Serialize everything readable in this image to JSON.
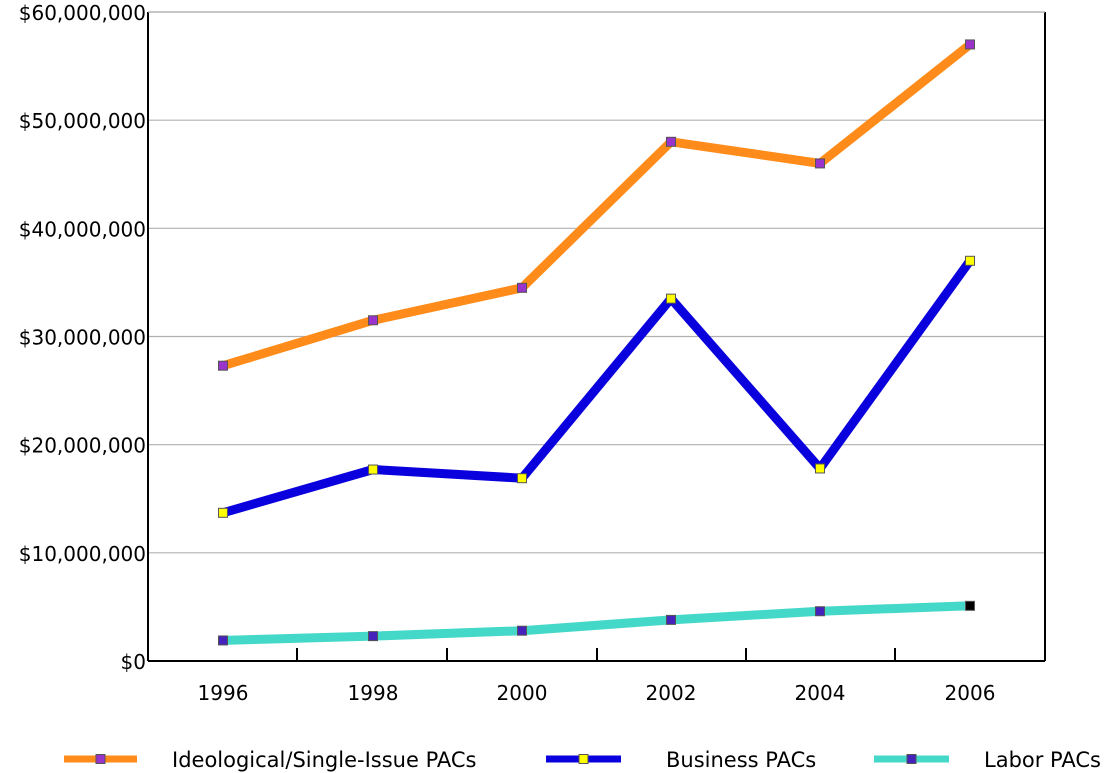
{
  "chart_data": {
    "type": "line",
    "title": "",
    "xlabel": "",
    "ylabel": "",
    "x": [
      1996,
      1998,
      2000,
      2002,
      2004,
      2006
    ],
    "x_tick_labels": [
      "1996",
      "1998",
      "2000",
      "2002",
      "2004",
      "2006"
    ],
    "ylim": [
      0,
      60000000
    ],
    "y_ticks": [
      0,
      10000000,
      20000000,
      30000000,
      40000000,
      50000000,
      60000000
    ],
    "y_tick_labels": [
      "$0",
      "$10,000,000",
      "$20,000,000",
      "$30,000,000",
      "$40,000,000",
      "$50,000,000",
      "$60,000,000"
    ],
    "grid": "horizontal",
    "legend_position": "bottom",
    "series": [
      {
        "name": "Ideological/Single-Issue PACs",
        "color": "#ff8c1a",
        "marker_color": "#9933cc",
        "values": [
          27300000,
          31500000,
          34500000,
          48000000,
          46000000,
          57000000
        ]
      },
      {
        "name": "Business PACs",
        "color": "#0a00dd",
        "marker_color": "#ffff00",
        "values": [
          13700000,
          17700000,
          16900000,
          33500000,
          17800000,
          37000000
        ]
      },
      {
        "name": "Labor PACs",
        "color": "#44d8c8",
        "marker_color": "#4422bb",
        "values": [
          1900000,
          2300000,
          2800000,
          3800000,
          4600000,
          5100000
        ]
      }
    ]
  }
}
